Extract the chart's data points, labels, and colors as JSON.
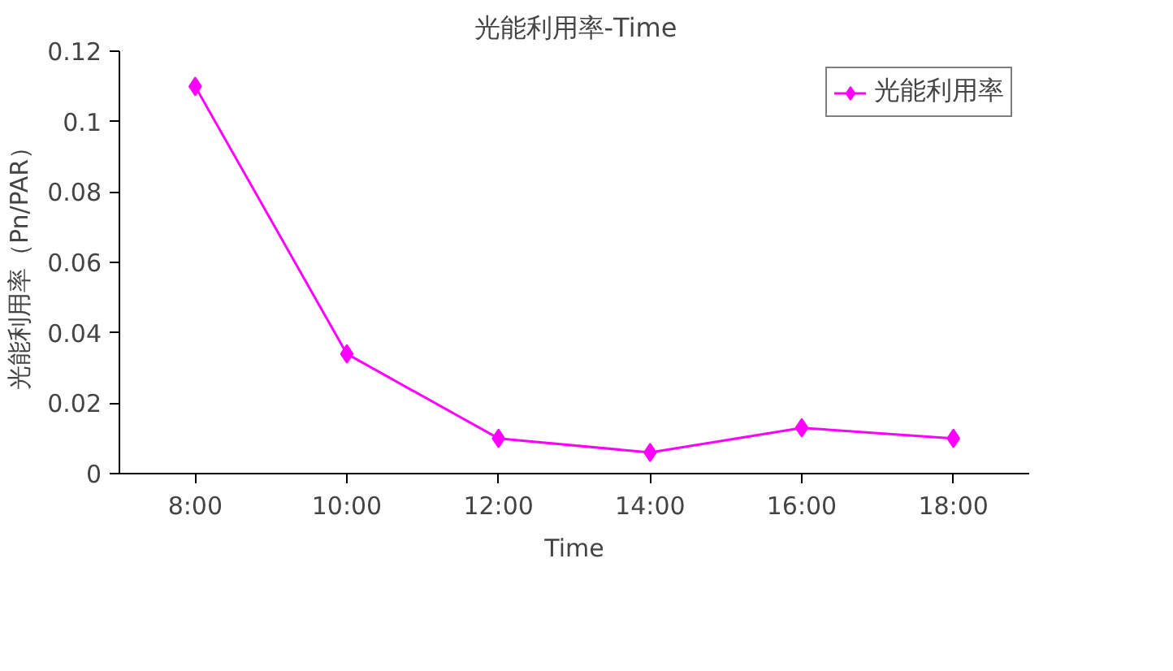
{
  "chart_data": {
    "type": "line",
    "title": "光能利用率-Time",
    "xlabel": "Time",
    "ylabel": "光能利用率（Pn/PAR）",
    "categories": [
      "8:00",
      "10:00",
      "12:00",
      "14:00",
      "16:00",
      "18:00"
    ],
    "series": [
      {
        "name": "光能利用率",
        "color": "#ff00ff",
        "values": [
          0.11,
          0.034,
          0.01,
          0.006,
          0.013,
          0.01
        ]
      }
    ],
    "ylim": [
      0,
      0.12
    ],
    "yticks": [
      0,
      0.02,
      0.04,
      0.06,
      0.08,
      0.1,
      0.12
    ],
    "grid": false,
    "legend": "top right",
    "marker": "diamond",
    "line_style": "solid"
  }
}
